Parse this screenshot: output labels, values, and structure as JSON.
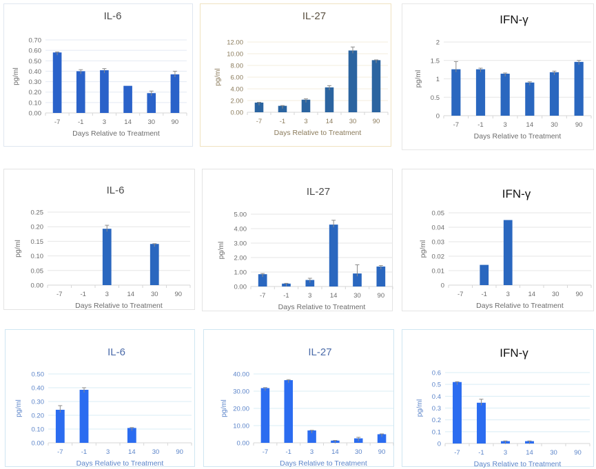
{
  "chart_data": [
    {
      "type": "bar",
      "row": 1,
      "col": 1,
      "title": "IL-6",
      "xlabel": "Days Relative to Treatment",
      "ylabel": "pg/ml",
      "categories": [
        "-7",
        "-1",
        "3",
        "14",
        "30",
        "90"
      ],
      "values": [
        0.58,
        0.4,
        0.41,
        0.26,
        0.19,
        0.37
      ],
      "errors": [
        0.005,
        0.015,
        0.015,
        0.0,
        0.02,
        0.03
      ],
      "ylim": [
        0,
        0.7
      ],
      "yticks": [
        "0.00",
        "0.10",
        "0.20",
        "0.30",
        "0.40",
        "0.50",
        "0.60",
        "0.70"
      ],
      "grid": true,
      "colors": {
        "bar": "#2a62c9",
        "text": "#6b6b6b",
        "title": "#4a4a4a",
        "grid": "#e3e9f3",
        "border": "#dfe6f0"
      }
    },
    {
      "type": "bar",
      "row": 1,
      "col": 2,
      "title": "IL-27",
      "xlabel": "Days Relative to Treatment",
      "ylabel": "pg/ml",
      "categories": [
        "-7",
        "-1",
        "3",
        "14",
        "30",
        "90"
      ],
      "values": [
        1.65,
        1.1,
        2.15,
        4.25,
        10.55,
        8.9
      ],
      "errors": [
        0.05,
        0.05,
        0.15,
        0.3,
        0.6,
        0.05
      ],
      "ylim": [
        0,
        12
      ],
      "yticks": [
        "0.00",
        "2.00",
        "4.00",
        "6.00",
        "8.00",
        "10.00",
        "12.00"
      ],
      "grid": true,
      "colors": {
        "bar": "#2b64a0",
        "text": "#8a7a5a",
        "title": "#5a5040",
        "grid": "#f3eddc",
        "border": "#f0e2c0"
      }
    },
    {
      "type": "bar",
      "row": 1,
      "col": 3,
      "title": "IFN-γ",
      "xlabel": "Days Relative to Treatment",
      "ylabel": "pg/ml",
      "categories": [
        "-7",
        "-1",
        "3",
        "14",
        "30",
        "90"
      ],
      "values": [
        1.26,
        1.26,
        1.14,
        0.9,
        1.18,
        1.46
      ],
      "errors": [
        0.21,
        0.03,
        0.02,
        0.02,
        0.03,
        0.04
      ],
      "ylim": [
        0,
        2
      ],
      "yticks": [
        "0",
        "0.5",
        "1",
        "1.5",
        "2"
      ],
      "grid": true,
      "colors": {
        "bar": "#2a67bf",
        "text": "#6b6b6b",
        "title": "#111111",
        "grid": "#e6e6e6",
        "border": "#e6e6e6"
      }
    },
    {
      "type": "bar",
      "row": 2,
      "col": 1,
      "title": "IL-6",
      "xlabel": "Days Relative to Treatment",
      "ylabel": "pg/ml",
      "categories": [
        "-7",
        "-1",
        "3",
        "14",
        "30",
        "90"
      ],
      "values": [
        0,
        0,
        0.193,
        0,
        0.141,
        0
      ],
      "errors": [
        0,
        0,
        0.012,
        0,
        0.001,
        0
      ],
      "ylim": [
        0,
        0.25
      ],
      "yticks": [
        "0.00",
        "0.05",
        "0.10",
        "0.15",
        "0.20",
        "0.25"
      ],
      "grid": true,
      "colors": {
        "bar": "#2a67bf",
        "text": "#6b6b6b",
        "title": "#4a4a4a",
        "grid": "#e6e6e6",
        "border": "#e3e3e3"
      }
    },
    {
      "type": "bar",
      "row": 2,
      "col": 2,
      "title": "IL-27",
      "xlabel": "Days Relative to Treatment",
      "ylabel": "pg/ml",
      "categories": [
        "-7",
        "-1",
        "3",
        "14",
        "30",
        "90"
      ],
      "values": [
        0.85,
        0.2,
        0.45,
        4.28,
        0.9,
        1.38
      ],
      "errors": [
        0.05,
        0.02,
        0.12,
        0.3,
        0.6,
        0.07
      ],
      "ylim": [
        0,
        5
      ],
      "yticks": [
        "0.00",
        "1.00",
        "2.00",
        "3.00",
        "4.00",
        "5.00"
      ],
      "grid": true,
      "colors": {
        "bar": "#2a67bf",
        "text": "#6b6b6b",
        "title": "#4a4a4a",
        "grid": "#e6e6e6",
        "border": "#e3e3e3"
      }
    },
    {
      "type": "bar",
      "row": 2,
      "col": 3,
      "title": "IFN-γ",
      "xlabel": "Days Relative to Treatment",
      "ylabel": "pg/ml",
      "categories": [
        "-7",
        "-1",
        "3",
        "14",
        "30",
        "90"
      ],
      "values": [
        0,
        0.014,
        0.045,
        0,
        0,
        0
      ],
      "errors": [
        0,
        0,
        0,
        0,
        0,
        0
      ],
      "ylim": [
        0,
        0.05
      ],
      "yticks": [
        "0",
        "0.01",
        "0.02",
        "0.03",
        "0.04",
        "0.05"
      ],
      "grid": true,
      "colors": {
        "bar": "#2a67bf",
        "text": "#6b6b6b",
        "title": "#111111",
        "grid": "#e6e6e6",
        "border": "#e3e3e3"
      }
    },
    {
      "type": "bar",
      "row": 3,
      "col": 1,
      "title": "IL-6",
      "xlabel": "Days Relative to Treatment",
      "ylabel": "pg/ml",
      "categories": [
        "-7",
        "-1",
        "3",
        "14",
        "30",
        "90"
      ],
      "values": [
        0.24,
        0.385,
        0,
        0.108,
        0,
        0
      ],
      "errors": [
        0.03,
        0.015,
        0,
        0.003,
        0,
        0
      ],
      "ylim": [
        0,
        0.5
      ],
      "yticks": [
        "0.00",
        "0.10",
        "0.20",
        "0.30",
        "0.40",
        "0.50"
      ],
      "grid": true,
      "colors": {
        "bar": "#2b6cf0",
        "text": "#5b84c9",
        "title": "#4a6aa8",
        "grid": "#d8ecf5",
        "border": "#cfe6f2"
      }
    },
    {
      "type": "bar",
      "row": 3,
      "col": 2,
      "title": "IL-27",
      "xlabel": "Days Relative to Treatment",
      "ylabel": "pg/ml",
      "categories": [
        "-7",
        "-1",
        "3",
        "14",
        "30",
        "90"
      ],
      "values": [
        31.8,
        36.4,
        7.2,
        1.3,
        2.6,
        5.0
      ],
      "errors": [
        0.3,
        0.3,
        0.1,
        0.1,
        0.6,
        0.2
      ],
      "ylim": [
        0,
        40
      ],
      "yticks": [
        "0.00",
        "10.00",
        "20.00",
        "30.00",
        "40.00"
      ],
      "grid": true,
      "colors": {
        "bar": "#2b6cf0",
        "text": "#5b84c9",
        "title": "#4a6aa8",
        "grid": "#d8ecf5",
        "border": "#cfe6f2"
      }
    },
    {
      "type": "bar",
      "row": 3,
      "col": 3,
      "title": "IFN-γ",
      "xlabel": "Days Relative to Treatment",
      "ylabel": "pg/ml",
      "categories": [
        "-7",
        "-1",
        "3",
        "14",
        "30",
        "90"
      ],
      "values": [
        0.52,
        0.345,
        0.02,
        0.02,
        0,
        0
      ],
      "errors": [
        0.003,
        0.03,
        0.002,
        0.002,
        0,
        0
      ],
      "ylim": [
        0,
        0.6
      ],
      "yticks": [
        "0",
        "0.1",
        "0.2",
        "0.3",
        "0.4",
        "0.5",
        "0.6"
      ],
      "grid": true,
      "colors": {
        "bar": "#2b6cf0",
        "text": "#5b84c9",
        "title": "#111111",
        "grid": "#d8ecf5",
        "border": "#cfe6f2"
      }
    }
  ]
}
